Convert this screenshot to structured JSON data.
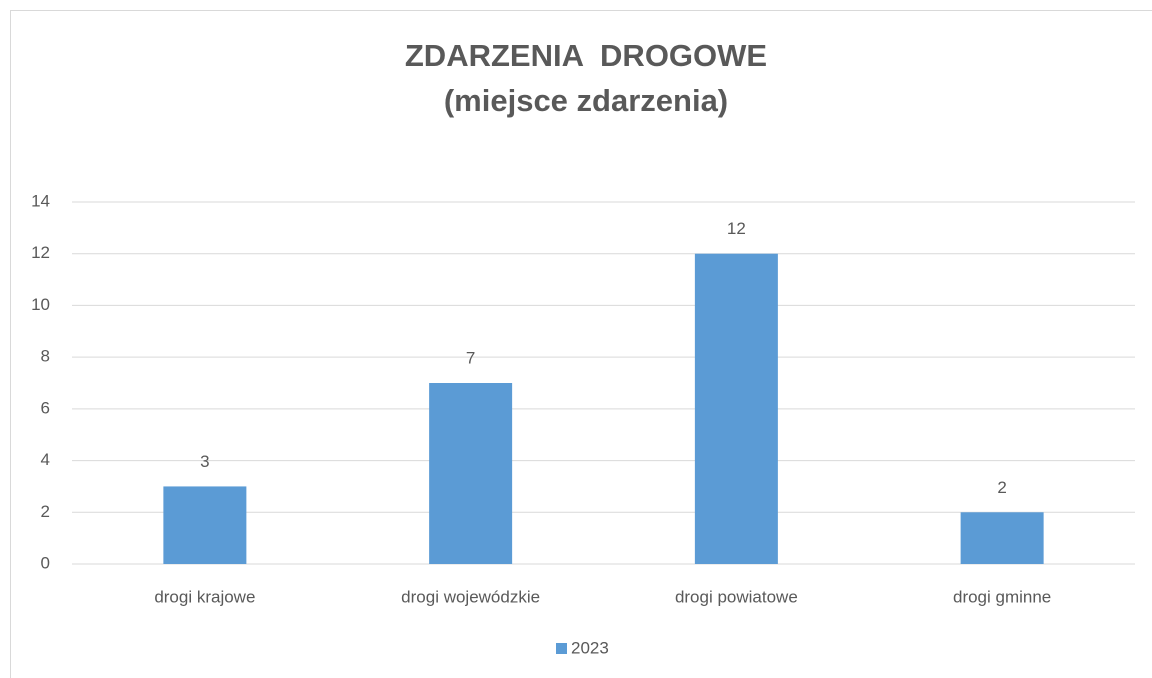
{
  "chart_data": {
    "type": "bar",
    "title": "ZDARZENIA  DROGOWE",
    "subtitle": "(miejsce zdarzenia)",
    "categories": [
      "drogi krajowe",
      "drogi wojewódzkie",
      "drogi powiatowe",
      "drogi gminne"
    ],
    "series": [
      {
        "name": "2023",
        "color": "#5b9bd5",
        "values": [
          3,
          7,
          12,
          2
        ]
      }
    ],
    "ylim": [
      0,
      14
    ],
    "yticks": [
      0,
      2,
      4,
      6,
      8,
      10,
      12,
      14
    ],
    "grid": true,
    "legend": "bottom"
  }
}
